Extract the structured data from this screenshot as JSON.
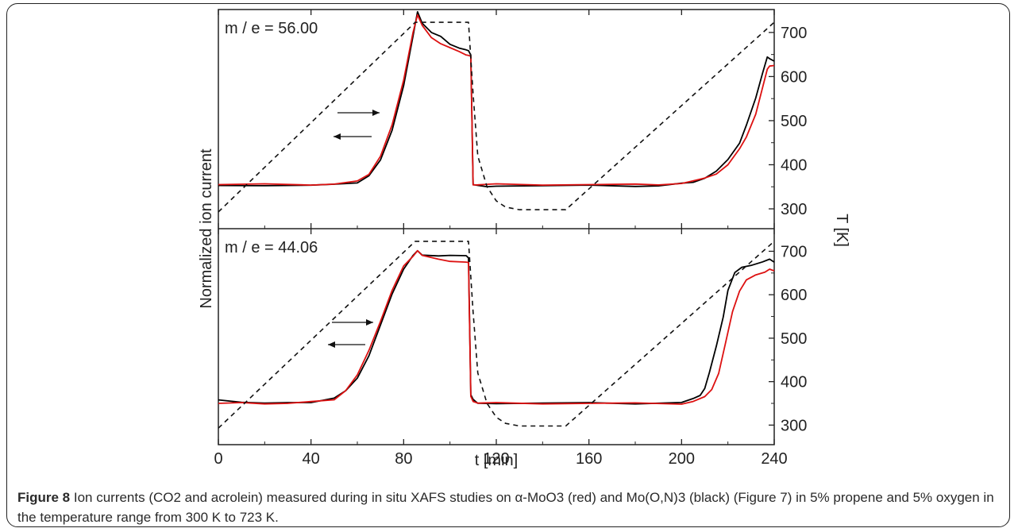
{
  "chart_data": [
    {
      "type": "line",
      "panel": "top",
      "annotation": "m / e = 56.00",
      "x_range": [
        0,
        240
      ],
      "y_right_label": "T [K]",
      "y_right_ticks": [
        300,
        400,
        500,
        600,
        700
      ],
      "y_right_range": [
        255,
        752
      ],
      "legend": "none",
      "grid": false,
      "series": [
        {
          "color": "#000000",
          "x": [
            0,
            20,
            40,
            50,
            60,
            65,
            70,
            75,
            80,
            84,
            86,
            88,
            92,
            96,
            100,
            104,
            107,
            108,
            109,
            110,
            112,
            116,
            120,
            140,
            160,
            180,
            190,
            200,
            205,
            210,
            215,
            220,
            225,
            228,
            232,
            235,
            237,
            238,
            240
          ],
          "y": [
            353,
            353,
            353,
            354,
            360,
            375,
            410,
            480,
            580,
            690,
            745,
            722,
            700,
            690,
            675,
            665,
            660,
            657,
            650,
            355,
            352,
            352,
            352,
            352,
            352,
            352,
            352,
            357,
            362,
            370,
            385,
            410,
            450,
            490,
            550,
            610,
            645,
            640,
            635
          ]
        },
        {
          "color": "#dd1111",
          "x": [
            0,
            20,
            40,
            50,
            60,
            65,
            70,
            75,
            80,
            84,
            86,
            88,
            92,
            96,
            100,
            104,
            107,
            108,
            109,
            110,
            112,
            116,
            120,
            140,
            160,
            180,
            190,
            200,
            205,
            210,
            215,
            220,
            225,
            228,
            232,
            235,
            237,
            238,
            240
          ],
          "y": [
            355,
            355,
            355,
            356,
            362,
            380,
            420,
            490,
            590,
            700,
            740,
            715,
            690,
            675,
            665,
            655,
            650,
            648,
            645,
            356,
            355,
            355,
            355,
            355,
            355,
            355,
            356,
            358,
            363,
            368,
            380,
            400,
            435,
            465,
            515,
            575,
            615,
            625,
            625
          ]
        },
        {
          "color": "#111111",
          "x": [
            0,
            85,
            108,
            110,
            112,
            116,
            120,
            124,
            130,
            150,
            240
          ],
          "y": [
            293,
            723,
            723,
            560,
            420,
            350,
            318,
            304,
            298,
            298,
            723
          ]
        }
      ]
    },
    {
      "type": "line",
      "panel": "bottom",
      "annotation": "m / e = 44.06",
      "x_range": [
        0,
        240
      ],
      "xlabel": "t [min]",
      "x_ticks": [
        0,
        40,
        80,
        120,
        160,
        200,
        240
      ],
      "y_right_label": "T [K]",
      "y_right_ticks": [
        300,
        400,
        500,
        600,
        700
      ],
      "y_right_range": [
        255,
        752
      ],
      "legend": "none",
      "grid": false,
      "series": [
        {
          "color": "#000000",
          "x": [
            0,
            10,
            20,
            30,
            40,
            50,
            55,
            60,
            65,
            70,
            75,
            80,
            84,
            86,
            88,
            95,
            100,
            107,
            108,
            109,
            110,
            112,
            120,
            140,
            160,
            180,
            200,
            205,
            208,
            210,
            212,
            215,
            218,
            220,
            223,
            226,
            230,
            235,
            238,
            240
          ],
          "y": [
            358,
            353,
            350,
            350,
            353,
            362,
            378,
            410,
            460,
            530,
            600,
            660,
            690,
            700,
            693,
            690,
            690,
            688,
            686,
            370,
            358,
            352,
            350,
            350,
            350,
            350,
            352,
            360,
            370,
            385,
            420,
            480,
            550,
            610,
            650,
            665,
            668,
            675,
            680,
            675
          ]
        },
        {
          "color": "#dd1111",
          "x": [
            0,
            10,
            20,
            30,
            40,
            50,
            55,
            60,
            65,
            70,
            75,
            80,
            84,
            86,
            88,
            95,
            100,
            107,
            108,
            109,
            110,
            112,
            120,
            140,
            160,
            180,
            200,
            205,
            210,
            213,
            216,
            219,
            222,
            225,
            228,
            232,
            236,
            238,
            240
          ],
          "y": [
            350,
            350,
            350,
            350,
            353,
            360,
            380,
            415,
            470,
            540,
            610,
            665,
            690,
            702,
            690,
            680,
            678,
            675,
            673,
            368,
            355,
            350,
            350,
            350,
            350,
            350,
            350,
            355,
            365,
            380,
            420,
            490,
            560,
            610,
            635,
            645,
            650,
            660,
            655
          ]
        },
        {
          "color": "#111111",
          "x": [
            0,
            85,
            108,
            110,
            112,
            116,
            120,
            124,
            130,
            150,
            240
          ],
          "y": [
            293,
            723,
            723,
            560,
            420,
            350,
            318,
            304,
            298,
            298,
            723
          ]
        }
      ]
    }
  ],
  "plot": {
    "y_left_label": "Normalized ion current"
  },
  "caption": {
    "label": "Figure 8",
    "text": " Ion currents (CO2 and acrolein) measured during in situ XAFS studies on α-MoO3 (red) and Mo(O,N)3 (black) (Figure 7) in 5% propene and 5% oxygen in the temperature range from 300 K to 723 K."
  }
}
